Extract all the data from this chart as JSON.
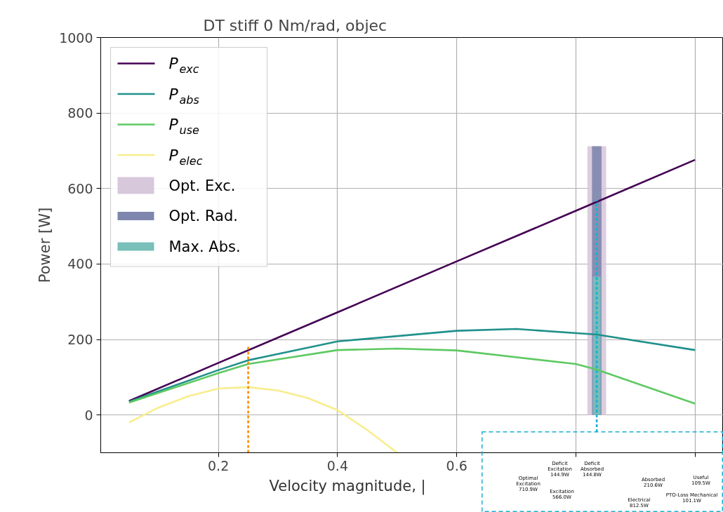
{
  "chart_data": {
    "type": "line",
    "title": "DT stiff 0 Nm/rad, objec",
    "xlabel": "Velocity magnitude, |",
    "ylabel": "Power [W]",
    "xlim": [
      0.0025,
      1.0475
    ],
    "ylim": [
      -100,
      1000
    ],
    "xticks": [
      0.2,
      0.4,
      0.6,
      {
        "value": 0.8,
        "label": null
      },
      {
        "value": 1.0,
        "label": null
      }
    ],
    "yticks": [
      0,
      200,
      400,
      600,
      800,
      1000
    ],
    "grid": true,
    "legend": "top left",
    "series": [
      {
        "name": "P$_{exc}$",
        "color": "#440154",
        "x": [
          0.05,
          0.2,
          0.4,
          0.6,
          0.8,
          1.0
        ],
        "values": [
          37,
          138,
          272,
          407,
          541,
          676
        ]
      },
      {
        "name": "P$_{abs}$",
        "color": "#21918c",
        "x": [
          0.05,
          0.2,
          0.25,
          0.4,
          0.6,
          0.7,
          0.835,
          1.0
        ],
        "values": [
          35,
          119,
          145,
          195,
          223,
          228,
          213,
          172
        ]
      },
      {
        "name": "P$_{use}$",
        "color": "#5ec962",
        "x": [
          0.05,
          0.2,
          0.25,
          0.4,
          0.5,
          0.6,
          0.8,
          0.835,
          1.0
        ],
        "values": [
          33,
          111,
          135,
          172,
          176,
          171,
          135,
          120,
          30
        ]
      },
      {
        "name": "P$_{elec}$",
        "color": "#f8ed8d",
        "x": [
          0.05,
          0.1,
          0.15,
          0.2,
          0.25,
          0.3,
          0.35,
          0.4,
          0.45,
          0.5
        ],
        "values": [
          -20,
          20,
          50,
          70,
          74,
          65,
          45,
          13,
          -40,
          -100
        ]
      },
      {
        "type": "bar",
        "name": "Opt. Exc.",
        "color": "#d8c8dc",
        "x": [
          0.835
        ],
        "values": [
          712
        ]
      },
      {
        "type": "bar",
        "name": "Opt. Rad.",
        "color": "#7e86ad",
        "x": [
          0.835
        ],
        "values": [
          712
        ]
      },
      {
        "type": "bar",
        "name": "Max. Abs.",
        "color": "#79bfba",
        "x": [
          0.835
        ],
        "values": [
          367
        ]
      },
      {
        "color": "#ff8c00",
        "line_style": "dashed",
        "x": [
          0.25,
          0.25
        ],
        "values": [
          -100,
          184
        ]
      },
      {
        "color": "#1ab0d0",
        "line_style": "dashed",
        "x": [
          0.835,
          0.835
        ],
        "values": [
          -45,
          570
        ]
      }
    ],
    "annotations": [
      "Optimal\nExcitation\n710.9W",
      "Deficit\nExcitation\n144.9W",
      "Excitation\n566.0W",
      "Deficit\nAbsorbed\n144.8W",
      "Absorbed\n210.6W",
      "Useful\n109.5W",
      "PTO-Loss Mechanical\n101.1W",
      "Electrical\n812.5W"
    ]
  }
}
